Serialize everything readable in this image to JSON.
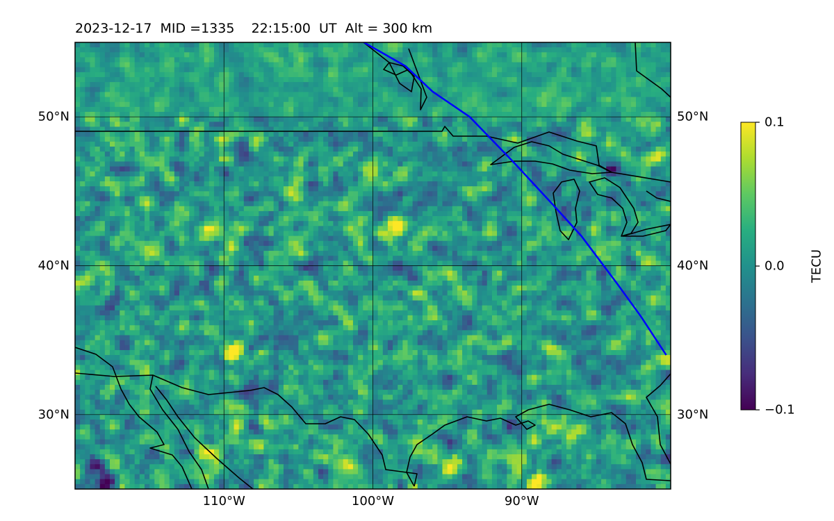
{
  "title": "2023-12-17  MID =1335    22:15:00  UT  Alt = 300 km",
  "map": {
    "lon_range": [
      -120,
      -80
    ],
    "lat_range": [
      25,
      55
    ],
    "lat_ticks": [
      {
        "value": 30,
        "label": "30°N"
      },
      {
        "value": 40,
        "label": "40°N"
      },
      {
        "value": 50,
        "label": "50°N"
      }
    ],
    "lon_ticks": [
      {
        "value": -110,
        "label": "110°W"
      },
      {
        "value": -100,
        "label": "100°W"
      },
      {
        "value": -90,
        "label": "90°W"
      }
    ],
    "grid_color": "#000000",
    "coastline_color": "#000000",
    "track_color": "#0000ff",
    "track": [
      [
        -100.6,
        55
      ],
      [
        -97.8,
        53.4
      ],
      [
        -96,
        51.7
      ],
      [
        -93.5,
        50
      ],
      [
        -90.5,
        46.9
      ],
      [
        -88,
        44.2
      ],
      [
        -86,
        42
      ],
      [
        -83.6,
        38.8
      ],
      [
        -82,
        36.6
      ],
      [
        -80.3,
        34
      ]
    ],
    "hotspots": [
      {
        "lon": -109.4,
        "lat": 34.2,
        "intensity": 1.0
      },
      {
        "lon": -111,
        "lat": 27.5,
        "intensity": 0.9
      },
      {
        "lon": -107.5,
        "lat": 28,
        "intensity": 1.0
      },
      {
        "lon": -94.6,
        "lat": 26.6,
        "intensity": 0.9
      },
      {
        "lon": -90.3,
        "lat": 26.6,
        "intensity": 0.8
      },
      {
        "lon": -88.8,
        "lat": 25.3,
        "intensity": 1.0
      },
      {
        "lon": -98.2,
        "lat": 42.8,
        "intensity": 0.9
      },
      {
        "lon": -111,
        "lat": 42.4,
        "intensity": 0.8
      },
      {
        "lon": -118.5,
        "lat": 26.6,
        "intensity": -1.0
      },
      {
        "lon": -117.8,
        "lat": 25.6,
        "intensity": -1.0
      },
      {
        "lon": -84,
        "lat": 46.5,
        "intensity": -0.6
      }
    ]
  },
  "colorbar": {
    "label": "TECU",
    "min": -0.1,
    "max": 0.1,
    "ticks": [
      {
        "value": 0.1,
        "label": "0.1"
      },
      {
        "value": 0.0,
        "label": "0.0"
      },
      {
        "value": -0.1,
        "label": "−0.1"
      }
    ],
    "colormap": "viridis"
  }
}
